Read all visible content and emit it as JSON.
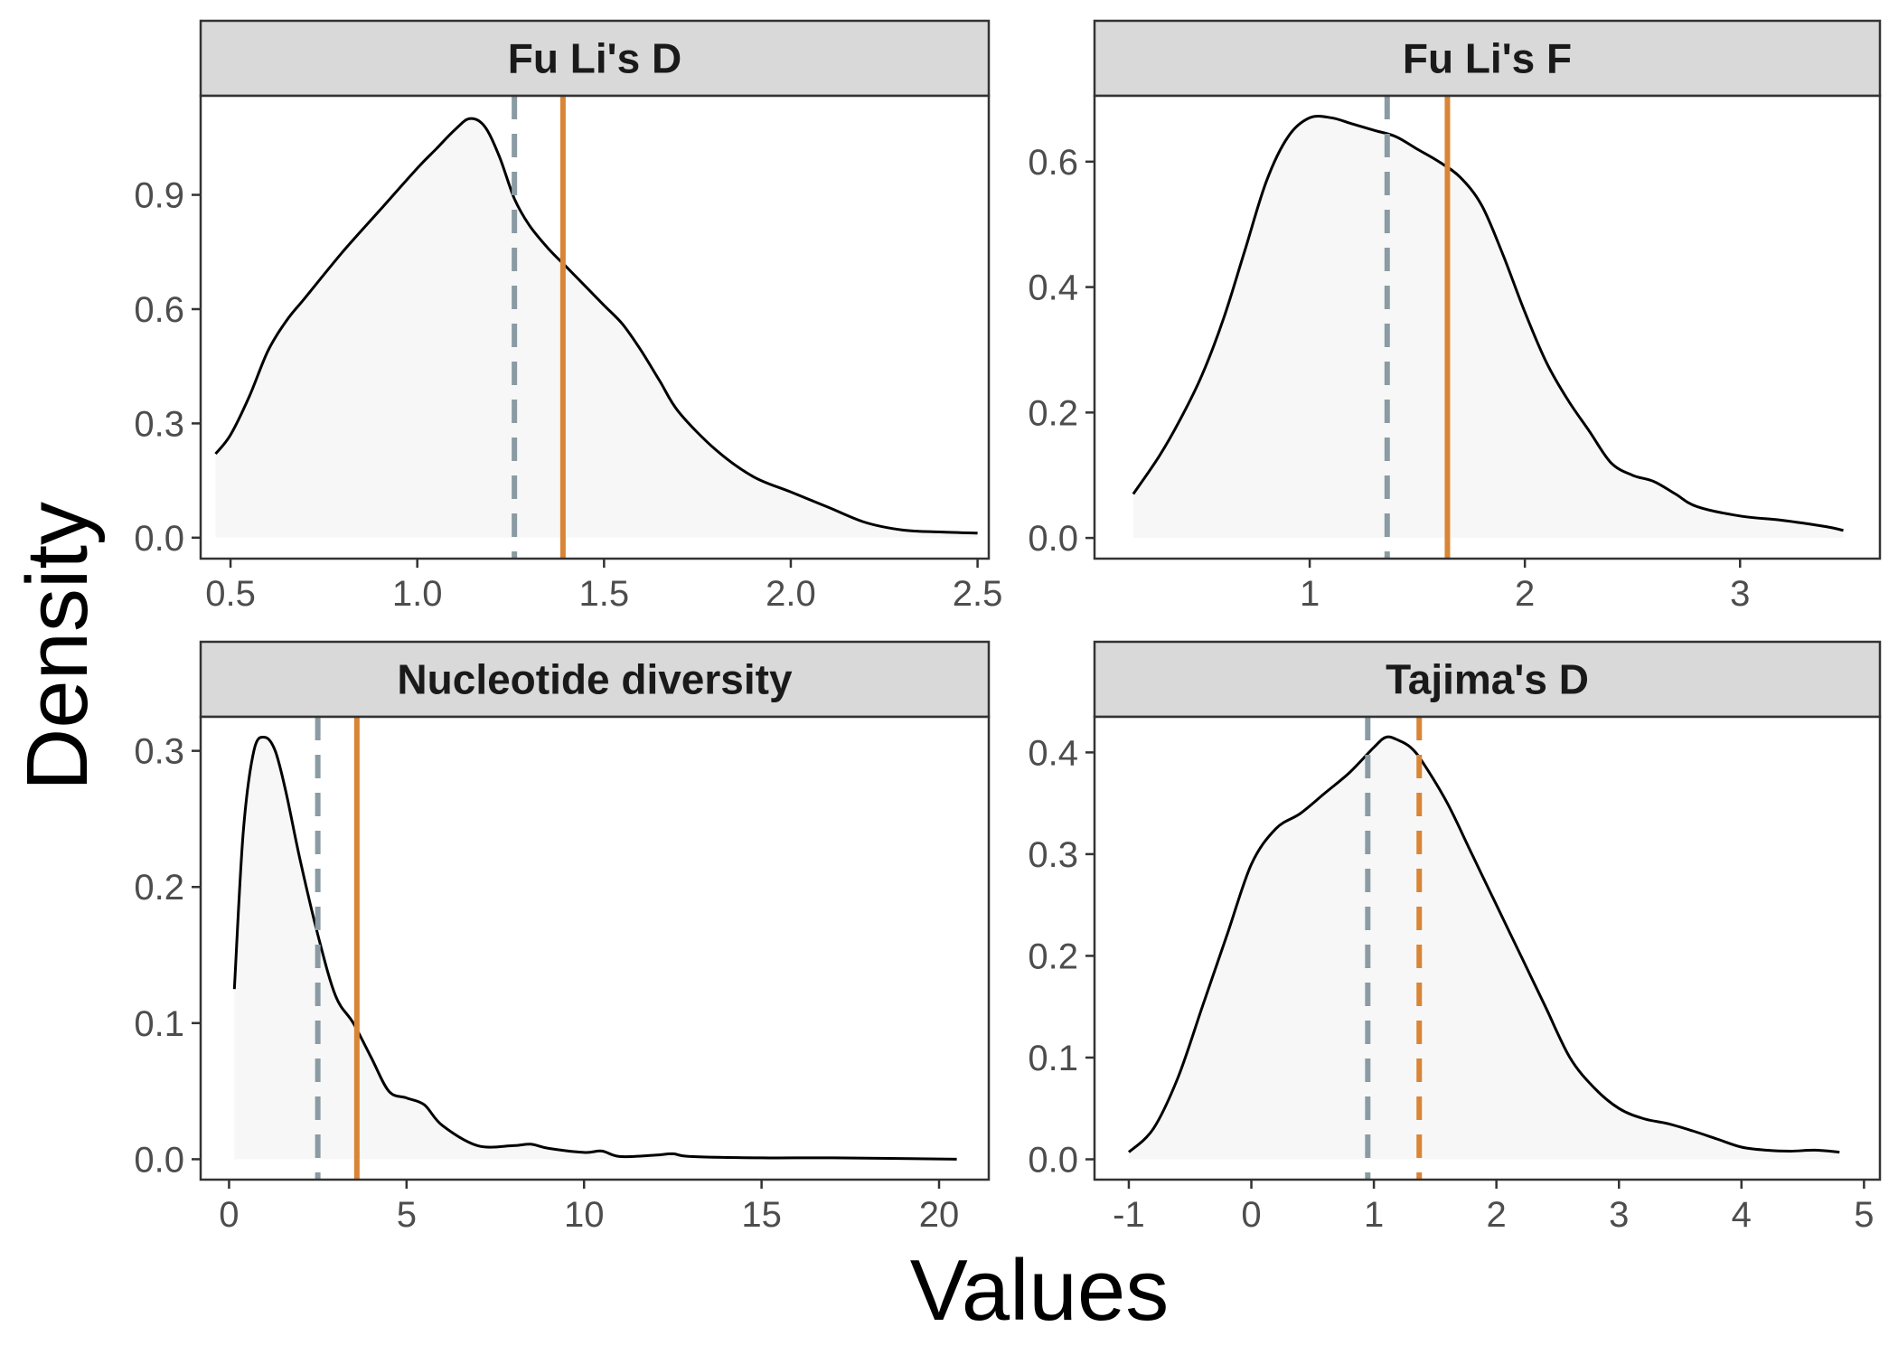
{
  "figure": {
    "xlabel": "Values",
    "ylabel": "Density"
  },
  "colors": {
    "curve": "#000000",
    "fill": "#f7f7f7",
    "observed": "#D98536",
    "reference": "#8A9BA3",
    "strip_bg": "#d9d9d9",
    "panel_border": "#333333",
    "tick_label": "#4d4d4d"
  },
  "chart_data": [
    {
      "type": "area",
      "title": "Fu Li's D",
      "xlim": [
        0.42,
        2.53
      ],
      "ylim": [
        -0.055,
        1.16
      ],
      "xticks": [
        0.5,
        1.0,
        1.5,
        2.0,
        2.5
      ],
      "xtick_labels": [
        "0.5",
        "1.0",
        "1.5",
        "2.0",
        "2.5"
      ],
      "yticks": [
        0.0,
        0.3,
        0.6,
        0.9
      ],
      "ytick_labels": [
        "0.0",
        "0.3",
        "0.6",
        "0.9"
      ],
      "x": [
        0.46,
        0.5,
        0.55,
        0.6,
        0.65,
        0.7,
        0.8,
        0.9,
        1.0,
        1.05,
        1.1,
        1.14,
        1.18,
        1.22,
        1.26,
        1.3,
        1.35,
        1.4,
        1.45,
        1.5,
        1.55,
        1.6,
        1.65,
        1.7,
        1.8,
        1.9,
        2.0,
        2.1,
        2.2,
        2.3,
        2.4,
        2.5
      ],
      "y": [
        0.22,
        0.27,
        0.37,
        0.49,
        0.57,
        0.63,
        0.75,
        0.86,
        0.97,
        1.02,
        1.07,
        1.1,
        1.08,
        1.0,
        0.89,
        0.82,
        0.76,
        0.71,
        0.66,
        0.61,
        0.56,
        0.49,
        0.41,
        0.33,
        0.23,
        0.16,
        0.12,
        0.08,
        0.04,
        0.02,
        0.015,
        0.012
      ],
      "observed": {
        "x": 1.39,
        "style": "solid"
      },
      "reference": {
        "x": 1.26,
        "style": "dashed"
      }
    },
    {
      "type": "area",
      "title": "Fu Li's F",
      "xlim": [
        0.0,
        3.65
      ],
      "ylim": [
        -0.033,
        0.705
      ],
      "xticks": [
        1,
        2,
        3
      ],
      "xtick_labels": [
        "1",
        "2",
        "3"
      ],
      "yticks": [
        0.0,
        0.2,
        0.4,
        0.6
      ],
      "ytick_labels": [
        "0.0",
        "0.2",
        "0.4",
        "0.6"
      ],
      "x": [
        0.18,
        0.3,
        0.4,
        0.5,
        0.6,
        0.7,
        0.8,
        0.9,
        1.0,
        1.1,
        1.2,
        1.3,
        1.4,
        1.5,
        1.6,
        1.7,
        1.8,
        1.9,
        2.0,
        2.1,
        2.2,
        2.3,
        2.4,
        2.5,
        2.6,
        2.7,
        2.8,
        3.0,
        3.2,
        3.4,
        3.48
      ],
      "y": [
        0.07,
        0.13,
        0.19,
        0.26,
        0.35,
        0.46,
        0.57,
        0.64,
        0.67,
        0.67,
        0.66,
        0.65,
        0.64,
        0.62,
        0.6,
        0.575,
        0.53,
        0.45,
        0.36,
        0.28,
        0.22,
        0.17,
        0.12,
        0.1,
        0.09,
        0.07,
        0.05,
        0.035,
        0.028,
        0.018,
        0.012
      ],
      "observed": {
        "x": 1.64,
        "style": "solid"
      },
      "reference": {
        "x": 1.36,
        "style": "dashed"
      }
    },
    {
      "type": "area",
      "title": "Nucleotide diversity",
      "xlim": [
        -0.8,
        21.4
      ],
      "ylim": [
        -0.015,
        0.325
      ],
      "xticks": [
        0,
        5,
        10,
        15,
        20
      ],
      "xtick_labels": [
        "0",
        "5",
        "10",
        "15",
        "20"
      ],
      "yticks": [
        0.0,
        0.1,
        0.2,
        0.3
      ],
      "ytick_labels": [
        "0.0",
        "0.1",
        "0.2",
        "0.3"
      ],
      "x": [
        0.15,
        0.4,
        0.7,
        1.0,
        1.3,
        1.6,
        2.0,
        2.5,
        3.0,
        3.5,
        4.0,
        4.5,
        5.0,
        5.5,
        6.0,
        7.0,
        8.0,
        8.5,
        9.0,
        10.0,
        10.5,
        11.0,
        12.0,
        12.5,
        13.0,
        15.0,
        17.0,
        20.5
      ],
      "y": [
        0.125,
        0.24,
        0.3,
        0.31,
        0.3,
        0.27,
        0.22,
        0.165,
        0.12,
        0.1,
        0.075,
        0.05,
        0.045,
        0.04,
        0.025,
        0.01,
        0.01,
        0.011,
        0.008,
        0.005,
        0.006,
        0.002,
        0.003,
        0.004,
        0.002,
        0.001,
        0.001,
        0.0
      ],
      "observed": {
        "x": 3.6,
        "style": "solid"
      },
      "reference": {
        "x": 2.5,
        "style": "dashed"
      }
    },
    {
      "type": "area",
      "title": "Tajima's D",
      "xlim": [
        -1.28,
        5.13
      ],
      "ylim": [
        -0.02,
        0.435
      ],
      "xticks": [
        -1,
        0,
        1,
        2,
        3,
        4,
        5
      ],
      "xtick_labels": [
        "-1",
        "0",
        "1",
        "2",
        "3",
        "4",
        "5"
      ],
      "yticks": [
        0.0,
        0.1,
        0.2,
        0.3,
        0.4
      ],
      "ytick_labels": [
        "0.0",
        "0.1",
        "0.2",
        "0.3",
        "0.4"
      ],
      "x": [
        -1.0,
        -0.8,
        -0.6,
        -0.4,
        -0.2,
        0.0,
        0.2,
        0.4,
        0.6,
        0.8,
        1.0,
        1.1,
        1.2,
        1.3,
        1.4,
        1.6,
        1.8,
        2.0,
        2.2,
        2.4,
        2.6,
        2.8,
        3.0,
        3.2,
        3.4,
        3.6,
        3.8,
        4.0,
        4.2,
        4.4,
        4.6,
        4.8
      ],
      "y": [
        0.007,
        0.03,
        0.08,
        0.15,
        0.22,
        0.29,
        0.325,
        0.34,
        0.36,
        0.38,
        0.405,
        0.415,
        0.412,
        0.405,
        0.39,
        0.35,
        0.3,
        0.25,
        0.2,
        0.15,
        0.1,
        0.07,
        0.05,
        0.04,
        0.035,
        0.028,
        0.02,
        0.012,
        0.009,
        0.008,
        0.009,
        0.007
      ],
      "observed": {
        "x": 1.37,
        "style": "dashed"
      },
      "reference": {
        "x": 0.95,
        "style": "dashed"
      }
    }
  ]
}
